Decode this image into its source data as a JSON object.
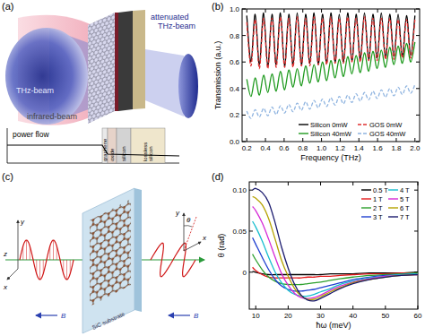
{
  "panels": {
    "a": {
      "label": "(a)",
      "thz_beam": "THz-beam",
      "infrared_beam": "infrared-beam",
      "attenuated_beam": "attenuated THz-beam",
      "plot_label": "power flow",
      "layers": [
        "graphene",
        "oxide",
        "silicon",
        "lossless silicon"
      ]
    },
    "c": {
      "label": "(c)",
      "substrate": "SiC substrate",
      "field_labels": [
        "B",
        "B"
      ],
      "axes_in": [
        "y",
        "x",
        "z"
      ],
      "axes_out": [
        "y",
        "x"
      ],
      "angle": "θ"
    }
  },
  "chart_data": [
    {
      "type": "line",
      "title": "(b)",
      "x_label": "Frequency (THz)",
      "y_label": "Transmission (a.u.)",
      "x": [
        0.2,
        0.245,
        0.29,
        0.335,
        0.38,
        0.425,
        0.47,
        0.515,
        0.56,
        0.605,
        0.65,
        0.695,
        0.74,
        0.785,
        0.83,
        0.875,
        0.92,
        0.965,
        1.01,
        1.055,
        1.1,
        1.145,
        1.19,
        1.235,
        1.28,
        1.325,
        1.37,
        1.415,
        1.46,
        1.505,
        1.55,
        1.595,
        1.64,
        1.685,
        1.73,
        1.775,
        1.82,
        1.865,
        1.91,
        1.955,
        2.0
      ],
      "xlim": [
        0.15,
        2.05
      ],
      "xticks": [
        0.2,
        0.4,
        0.6,
        0.8,
        {
          "value": 1,
          "label": "1.0"
        },
        1.2,
        1.4,
        1.6,
        1.8,
        {
          "value": 2,
          "label": "2.0"
        }
      ],
      "ylim": [
        0,
        1.0
      ],
      "yticks": [
        {
          "value": 0,
          "label": "0.0"
        },
        0.2,
        0.4,
        0.6,
        0.8,
        {
          "value": 1,
          "label": "1.0"
        }
      ],
      "grid": false,
      "legend": "lower right",
      "series": [
        {
          "name": "Silicon 0mW",
          "color": "#000000",
          "line_style": "solid",
          "values": [
            0.95,
            0.6,
            0.96,
            0.58,
            0.97,
            0.57,
            0.96,
            0.58,
            0.97,
            0.57,
            0.96,
            0.58,
            0.97,
            0.58,
            0.96,
            0.59,
            0.97,
            0.58,
            0.96,
            0.59,
            0.97,
            0.6,
            0.96,
            0.6,
            0.97,
            0.61,
            0.96,
            0.62,
            0.97,
            0.62,
            0.96,
            0.63,
            0.97,
            0.63,
            0.96,
            0.64,
            0.96,
            0.64,
            0.95,
            0.65,
            0.95
          ]
        },
        {
          "name": "Silicon 40mW",
          "color": "#1e9a1e",
          "line_style": "solid",
          "values": [
            0.47,
            0.34,
            0.48,
            0.35,
            0.5,
            0.37,
            0.51,
            0.38,
            0.53,
            0.39,
            0.54,
            0.41,
            0.55,
            0.42,
            0.57,
            0.44,
            0.58,
            0.45,
            0.6,
            0.46,
            0.61,
            0.48,
            0.62,
            0.49,
            0.64,
            0.51,
            0.65,
            0.52,
            0.67,
            0.53,
            0.68,
            0.55,
            0.69,
            0.56,
            0.71,
            0.58,
            0.72,
            0.59,
            0.74,
            0.6,
            0.75
          ]
        },
        {
          "name": "GOS 0mW",
          "color": "#e03030",
          "line_style": "dashed",
          "values": [
            0.9,
            0.57,
            0.92,
            0.55,
            0.93,
            0.55,
            0.93,
            0.56,
            0.94,
            0.56,
            0.93,
            0.56,
            0.94,
            0.57,
            0.93,
            0.57,
            0.94,
            0.58,
            0.93,
            0.58,
            0.94,
            0.59,
            0.93,
            0.59,
            0.94,
            0.6,
            0.93,
            0.6,
            0.94,
            0.61,
            0.93,
            0.61,
            0.93,
            0.62,
            0.93,
            0.62,
            0.92,
            0.63,
            0.92,
            0.63,
            0.92
          ]
        },
        {
          "name": "GOS 40mW",
          "color": "#8fb4e0",
          "line_style": "dashed",
          "values": [
            0.23,
            0.175,
            0.24,
            0.185,
            0.25,
            0.195,
            0.26,
            0.205,
            0.27,
            0.215,
            0.28,
            0.225,
            0.29,
            0.235,
            0.3,
            0.245,
            0.31,
            0.255,
            0.32,
            0.265,
            0.33,
            0.275,
            0.34,
            0.285,
            0.35,
            0.295,
            0.36,
            0.305,
            0.37,
            0.315,
            0.38,
            0.325,
            0.39,
            0.335,
            0.4,
            0.345,
            0.41,
            0.355,
            0.42,
            0.365,
            0.43
          ]
        }
      ]
    },
    {
      "type": "line",
      "title": "(d)",
      "x_label": "ħω (meV)",
      "y_label": "θ (rad)",
      "x": [
        9,
        10,
        12,
        14,
        16,
        18,
        20,
        22,
        24,
        26,
        28,
        30,
        33,
        36,
        40,
        45,
        50,
        55,
        60
      ],
      "xlim": [
        8,
        60
      ],
      "xticks": [
        10,
        20,
        30,
        40,
        50,
        60
      ],
      "ylim": [
        -0.045,
        0.11
      ],
      "yticks": [
        0,
        0.05,
        {
          "value": 0.1,
          "label": "0.10"
        }
      ],
      "grid": false,
      "legend": "upper right",
      "series": [
        {
          "name": "0.5 T",
          "color": "#000000",
          "line_style": "solid",
          "values": [
            0.001,
            0.0,
            -0.002,
            -0.003,
            -0.003,
            -0.003,
            -0.003,
            -0.003,
            -0.003,
            -0.003,
            -0.003,
            -0.003,
            -0.002,
            -0.002,
            -0.002,
            -0.001,
            -0.001,
            -0.001,
            0.0
          ]
        },
        {
          "name": "1 T",
          "color": "#e41a1c",
          "line_style": "solid",
          "values": [
            0.006,
            0.002,
            -0.003,
            -0.006,
            -0.007,
            -0.007,
            -0.007,
            -0.007,
            -0.007,
            -0.006,
            -0.006,
            -0.005,
            -0.005,
            -0.004,
            -0.003,
            -0.002,
            -0.002,
            -0.001,
            -0.001
          ]
        },
        {
          "name": "2 T",
          "color": "#2ca02c",
          "line_style": "solid",
          "values": [
            0.022,
            0.015,
            0.003,
            -0.006,
            -0.011,
            -0.014,
            -0.015,
            -0.015,
            -0.015,
            -0.014,
            -0.013,
            -0.012,
            -0.01,
            -0.008,
            -0.006,
            -0.004,
            -0.003,
            -0.002,
            -0.001
          ]
        },
        {
          "name": "3 T",
          "color": "#1f3fd0",
          "line_style": "solid",
          "values": [
            0.042,
            0.034,
            0.018,
            0.003,
            -0.009,
            -0.017,
            -0.021,
            -0.023,
            -0.023,
            -0.022,
            -0.021,
            -0.019,
            -0.016,
            -0.013,
            -0.009,
            -0.006,
            -0.004,
            -0.003,
            -0.002
          ]
        },
        {
          "name": "4 T",
          "color": "#17becf",
          "line_style": "solid",
          "values": [
            0.062,
            0.055,
            0.038,
            0.018,
            0.0,
            -0.013,
            -0.022,
            -0.027,
            -0.029,
            -0.029,
            -0.027,
            -0.024,
            -0.02,
            -0.015,
            -0.011,
            -0.007,
            -0.005,
            -0.003,
            -0.002
          ]
        },
        {
          "name": "5 T",
          "color": "#d62ad6",
          "line_style": "solid",
          "values": [
            0.08,
            0.075,
            0.06,
            0.04,
            0.018,
            -0.002,
            -0.016,
            -0.026,
            -0.031,
            -0.032,
            -0.031,
            -0.028,
            -0.022,
            -0.017,
            -0.012,
            -0.008,
            -0.005,
            -0.004,
            -0.003
          ]
        },
        {
          "name": "6 T",
          "color": "#b5a200",
          "line_style": "solid",
          "values": [
            0.092,
            0.09,
            0.082,
            0.065,
            0.04,
            0.014,
            -0.005,
            -0.02,
            -0.029,
            -0.033,
            -0.033,
            -0.03,
            -0.024,
            -0.019,
            -0.013,
            -0.009,
            -0.006,
            -0.004,
            -0.003
          ]
        },
        {
          "name": "7 T",
          "color": "#1a1a6e",
          "line_style": "solid",
          "values": [
            0.1,
            0.102,
            0.097,
            0.085,
            0.06,
            0.03,
            0.005,
            -0.015,
            -0.028,
            -0.034,
            -0.035,
            -0.032,
            -0.026,
            -0.02,
            -0.014,
            -0.009,
            -0.006,
            -0.004,
            -0.003
          ]
        }
      ]
    }
  ]
}
